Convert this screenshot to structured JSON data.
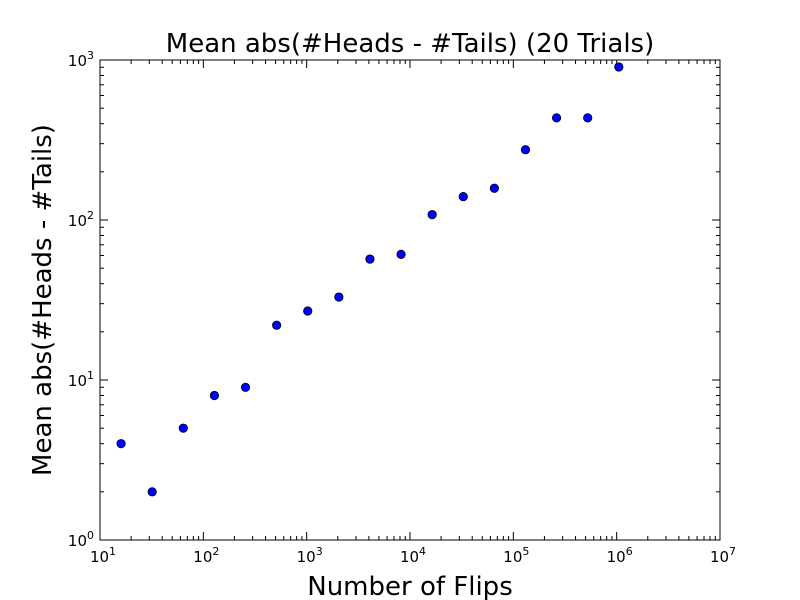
{
  "chart_data": {
    "type": "scatter",
    "title": "Mean abs(#Heads - #Tails) (20 Trials)",
    "xlabel": "Number of Flips",
    "ylabel": "Mean abs(#Heads - #Tails)",
    "xscale": "log",
    "yscale": "log",
    "xlim": [
      10,
      10000000
    ],
    "ylim": [
      1,
      1000
    ],
    "grid": false,
    "marker_color": "#0000ff",
    "marker_edge_color": "#000000",
    "x_ticks": [
      {
        "base": "10",
        "exp": "1"
      },
      {
        "base": "10",
        "exp": "2"
      },
      {
        "base": "10",
        "exp": "3"
      },
      {
        "base": "10",
        "exp": "4"
      },
      {
        "base": "10",
        "exp": "5"
      },
      {
        "base": "10",
        "exp": "6"
      },
      {
        "base": "10",
        "exp": "7"
      }
    ],
    "y_ticks": [
      {
        "base": "10",
        "exp": "0"
      },
      {
        "base": "10",
        "exp": "1"
      },
      {
        "base": "10",
        "exp": "2"
      },
      {
        "base": "10",
        "exp": "3"
      }
    ],
    "x": [
      16,
      32,
      64,
      128,
      256,
      512,
      1024,
      2048,
      4096,
      8192,
      16384,
      32768,
      65536,
      131072,
      262144,
      524288,
      1048576
    ],
    "y": [
      4,
      2,
      5,
      8,
      9,
      22,
      27,
      33,
      57,
      61,
      108,
      140,
      158,
      275,
      435,
      435,
      905
    ]
  }
}
